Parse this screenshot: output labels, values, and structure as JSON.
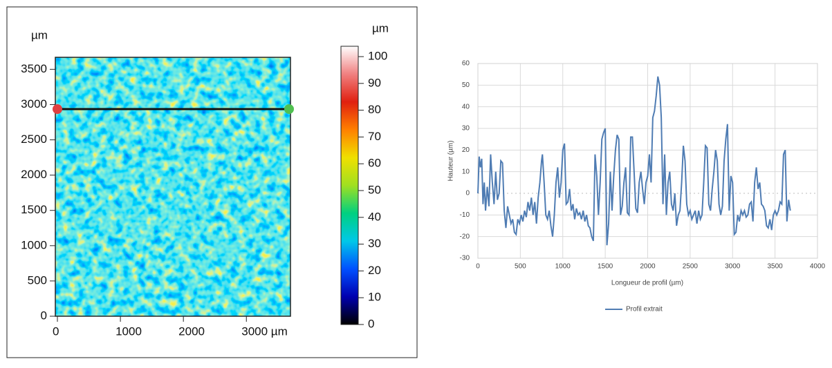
{
  "chart_data": [
    {
      "type": "heatmap",
      "x_unit": "µm",
      "y_unit": "µm",
      "colorbar_label": "µm",
      "xlim": [
        0,
        3700
      ],
      "ylim": [
        0,
        3670
      ],
      "xticks": [
        0,
        1000,
        2000,
        {
          "value": 3000,
          "label": "3000 µm"
        }
      ],
      "yticks": [
        0,
        500,
        1000,
        1500,
        2000,
        2500,
        3000,
        3500
      ],
      "clim": [
        0,
        100
      ],
      "cticks": [
        0,
        10,
        20,
        30,
        40,
        50,
        60,
        70,
        80,
        90,
        100
      ],
      "colormap": [
        "#000000",
        "#0000b0",
        "#0050ff",
        "#00c8e8",
        "#00d080",
        "#a0e020",
        "#f0e000",
        "#ff8000",
        "#e02010",
        "#f08080",
        "#ffffff"
      ]
    },
    {
      "type": "line",
      "xlabel": "Longueur de profil (µm)",
      "ylabel": "Hauteur (µm)",
      "xlim": [
        0,
        4000
      ],
      "xticks": [
        0,
        500,
        1000,
        1500,
        2000,
        2500,
        3000,
        3500,
        4000
      ],
      "ylim": [
        -30,
        60
      ],
      "yticks": [
        -30,
        -20,
        -10,
        0,
        10,
        20,
        30,
        40,
        50,
        60
      ],
      "grid": true,
      "x": [
        0,
        15,
        30,
        45,
        60,
        75,
        90,
        110,
        130,
        150,
        170,
        190,
        210,
        230,
        250,
        270,
        290,
        310,
        330,
        350,
        370,
        390,
        410,
        430,
        450,
        470,
        490,
        510,
        530,
        550,
        570,
        590,
        610,
        630,
        650,
        670,
        690,
        710,
        730,
        750,
        760,
        780,
        800,
        820,
        840,
        860,
        880,
        900,
        920,
        940,
        960,
        980,
        1000,
        1020,
        1040,
        1060,
        1080,
        1100,
        1120,
        1140,
        1160,
        1180,
        1200,
        1220,
        1240,
        1260,
        1280,
        1300,
        1320,
        1340,
        1360,
        1380,
        1400,
        1420,
        1440,
        1460,
        1480,
        1500,
        1520,
        1540,
        1560,
        1580,
        1600,
        1620,
        1640,
        1660,
        1680,
        1700,
        1720,
        1740,
        1760,
        1780,
        1800,
        1820,
        1840,
        1860,
        1880,
        1900,
        1920,
        1940,
        1960,
        1980,
        2000,
        2020,
        2040,
        2060,
        2080,
        2100,
        2120,
        2140,
        2160,
        2180,
        2200,
        2220,
        2240,
        2260,
        2280,
        2300,
        2320,
        2340,
        2360,
        2380,
        2400,
        2420,
        2440,
        2460,
        2480,
        2500,
        2520,
        2540,
        2560,
        2580,
        2600,
        2620,
        2640,
        2660,
        2680,
        2700,
        2720,
        2740,
        2760,
        2780,
        2800,
        2820,
        2840,
        2860,
        2880,
        2900,
        2920,
        2940,
        2960,
        2980,
        3000,
        3020,
        3040,
        3060,
        3080,
        3100,
        3120,
        3140,
        3160,
        3180,
        3200,
        3220,
        3240,
        3260,
        3280,
        3300,
        3320,
        3340,
        3360,
        3380,
        3400,
        3420,
        3440,
        3460,
        3480,
        3500,
        3520,
        3540,
        3560,
        3580,
        3600,
        3620,
        3640,
        3660,
        3680
      ],
      "series": [
        {
          "name": "Profil extrait",
          "color": "#4f7cb3",
          "values": [
            0,
            17,
            12,
            16,
            -5,
            5,
            -8,
            3,
            -6,
            18,
            5,
            -5,
            10,
            -3,
            0,
            15,
            14,
            -8,
            -16,
            -6,
            -10,
            -14,
            -12,
            -18,
            -19,
            -12,
            -14,
            -10,
            -13,
            -8,
            -11,
            -4,
            -8,
            -2,
            -10,
            -4,
            -14,
            -2,
            5,
            15,
            18,
            5,
            -10,
            -12,
            -8,
            -15,
            -20,
            -10,
            5,
            12,
            -2,
            5,
            20,
            23,
            -5,
            -4,
            2,
            -8,
            -5,
            -12,
            -7,
            -10,
            -9,
            -12,
            -8,
            -13,
            -10,
            -15,
            -16,
            -20,
            -22,
            18,
            8,
            -10,
            5,
            25,
            28,
            30,
            -24,
            -14,
            10,
            -8,
            8,
            20,
            27,
            25,
            -10,
            -6,
            5,
            12,
            -9,
            -10,
            26,
            26,
            10,
            -7,
            -9,
            5,
            10,
            2,
            -5,
            5,
            8,
            18,
            5,
            35,
            38,
            45,
            54,
            50,
            35,
            -5,
            18,
            -10,
            5,
            10,
            -5,
            -8,
            0,
            -15,
            -10,
            -8,
            5,
            22,
            15,
            -5,
            -10,
            -8,
            -12,
            -10,
            -8,
            -14,
            -8,
            -12,
            -10,
            5,
            22,
            21,
            -5,
            -8,
            2,
            10,
            20,
            15,
            -5,
            -10,
            -6,
            15,
            25,
            32,
            -8,
            8,
            5,
            -19,
            -18,
            -10,
            -13,
            -8,
            -10,
            -8,
            -11,
            -10,
            -5,
            -4,
            -13,
            5,
            12,
            2,
            5,
            -5,
            -6,
            -8,
            -15,
            -16,
            -12,
            -17,
            -10,
            -8,
            -10,
            -8,
            -4,
            -5,
            18,
            20,
            -13,
            -3,
            -8
          ]
        }
      ]
    }
  ]
}
